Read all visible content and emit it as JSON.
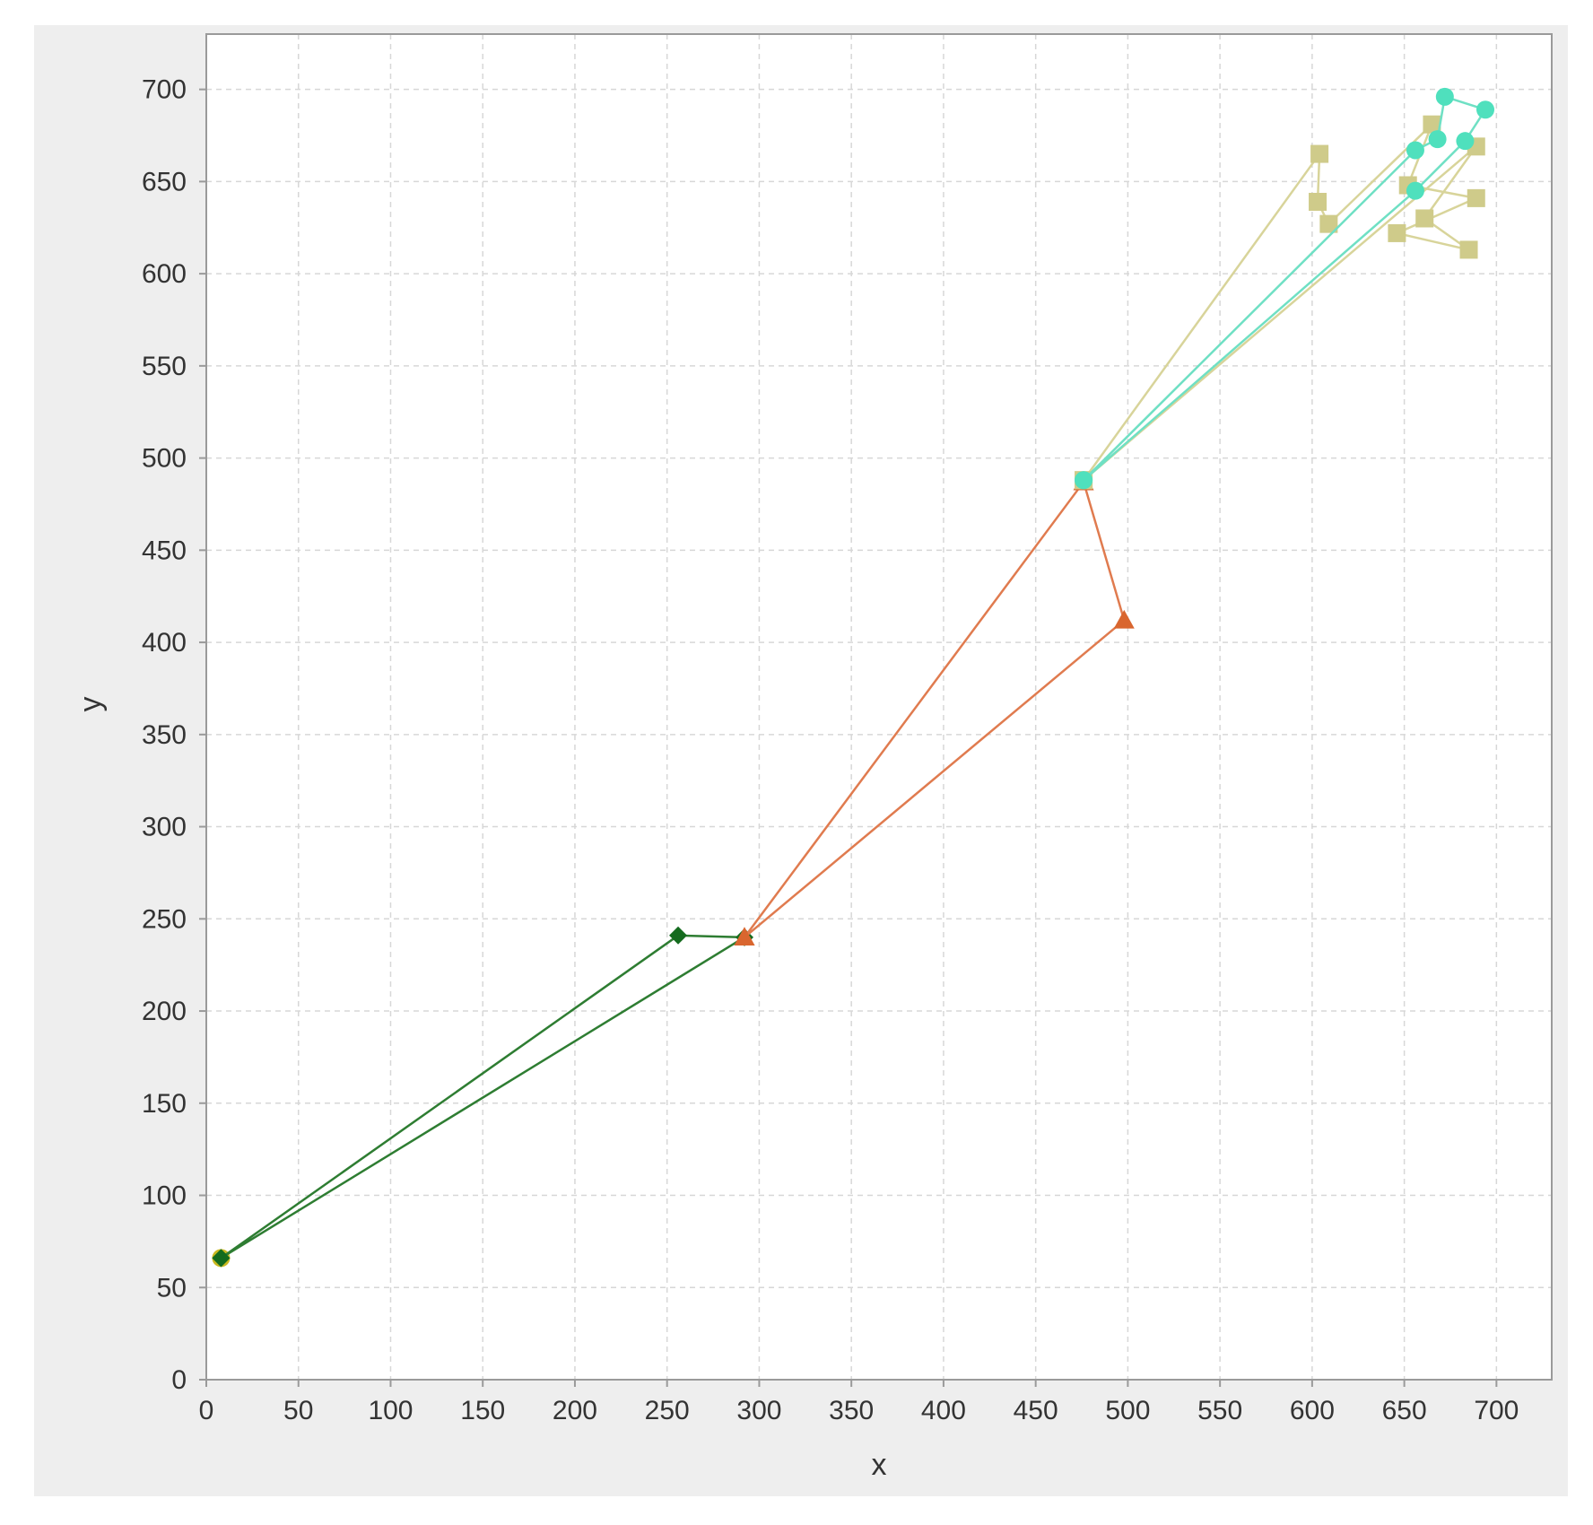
{
  "chart_data": {
    "type": "scatter",
    "title": "",
    "xlabel": "x",
    "ylabel": "y",
    "xlim": [
      0,
      730
    ],
    "ylim": [
      0,
      730
    ],
    "x_ticks": [
      0,
      50,
      100,
      150,
      200,
      250,
      300,
      350,
      400,
      450,
      500,
      550,
      600,
      650,
      700
    ],
    "y_ticks": [
      0,
      50,
      100,
      150,
      200,
      250,
      300,
      350,
      400,
      450,
      500,
      550,
      600,
      650,
      700
    ],
    "grid": true,
    "legend": "none",
    "colors": {
      "frame_background": "#eeeeee",
      "plot_background": "#ffffff",
      "grid": "#d7d7d7"
    },
    "series": [
      {
        "marker": "circle",
        "color": "#c9b820",
        "points": [
          [
            8,
            66
          ]
        ]
      },
      {
        "marker": "diamond",
        "color": "#2e7d32",
        "marker_color": "#146b1e",
        "points": [
          [
            8,
            66
          ],
          [
            256,
            241
          ],
          [
            292,
            240
          ],
          [
            8,
            66
          ]
        ]
      },
      {
        "marker": "triangle",
        "color": "#e07b4f",
        "marker_color": "#d9662f",
        "points": [
          [
            292,
            240
          ],
          [
            476,
            487
          ],
          [
            498,
            412
          ],
          [
            292,
            240
          ]
        ]
      },
      {
        "marker": "square",
        "color": "#d8d49a",
        "marker_color": "#cfcb8a",
        "points": [
          [
            476,
            488
          ],
          [
            604,
            665
          ],
          [
            603,
            639
          ],
          [
            609,
            627
          ],
          [
            665,
            681
          ],
          [
            652,
            648
          ],
          [
            689,
            641
          ],
          [
            646,
            622
          ],
          [
            685,
            613
          ],
          [
            661,
            630
          ],
          [
            689,
            669
          ],
          [
            476,
            488
          ]
        ]
      },
      {
        "marker": "circle",
        "color": "#6fe0c4",
        "marker_color": "#4fe0bd",
        "points": [
          [
            476,
            488
          ],
          [
            656,
            667
          ],
          [
            668,
            673
          ],
          [
            672,
            696
          ],
          [
            694,
            689
          ],
          [
            683,
            672
          ],
          [
            656,
            645
          ],
          [
            476,
            488
          ]
        ]
      }
    ]
  }
}
